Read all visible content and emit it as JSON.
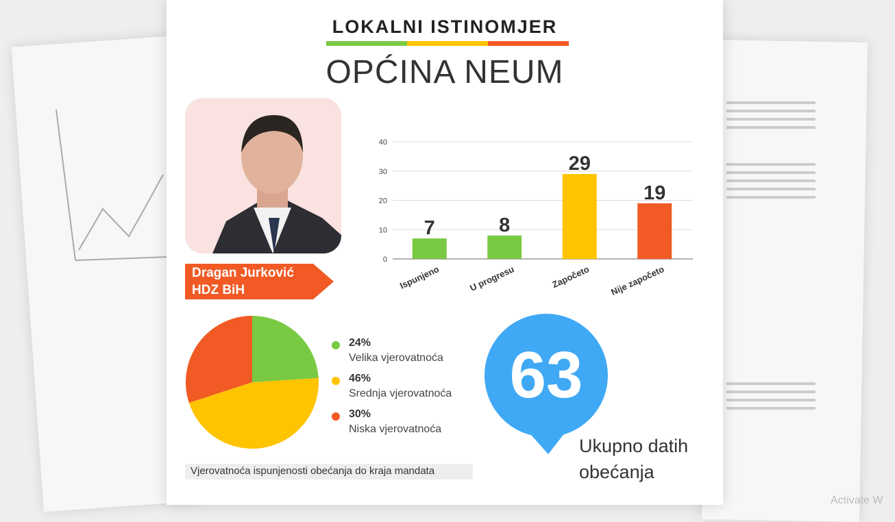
{
  "header": {
    "title": "LOKALNI ISTINOMJER",
    "subtitle": "OPĆINA NEUM",
    "stripe_colors": [
      "#7ac943",
      "#ffc400",
      "#f15a24"
    ]
  },
  "politician": {
    "name": "Dragan Jurković",
    "party": "HDZ BiH",
    "label_color": "#f15a24"
  },
  "total": {
    "value": "63",
    "label_line1": "Ukupno datih",
    "label_line2": "obećanja",
    "color": "#3fa9f5"
  },
  "caption": "Vjerovatnoća ispunjenosti obećanja do kraja mandata",
  "watermark": "Activate W",
  "chart_data": [
    {
      "type": "bar",
      "categories": [
        "Ispunjeno",
        "U progresu",
        "Započeto",
        "Nije započeto"
      ],
      "values": [
        7,
        8,
        29,
        19
      ],
      "data_labels": [
        "7",
        "8",
        "29",
        "19"
      ],
      "colors": [
        "#7ac943",
        "#7ac943",
        "#ffc400",
        "#f15a24"
      ],
      "ylim": [
        0,
        40
      ],
      "yticks": [
        "0",
        "10",
        "20",
        "30",
        "40"
      ],
      "grid": true
    },
    {
      "type": "pie",
      "slices": [
        {
          "value": 24,
          "pct": "24%",
          "label": "Velika vjerovatnoća",
          "color": "#7ac943"
        },
        {
          "value": 46,
          "pct": "46%",
          "label": "Srednja vjerovatnoća",
          "color": "#ffc400"
        },
        {
          "value": 30,
          "pct": "30%",
          "label": "Niska vjerovatnoća",
          "color": "#f15a24"
        }
      ]
    }
  ]
}
